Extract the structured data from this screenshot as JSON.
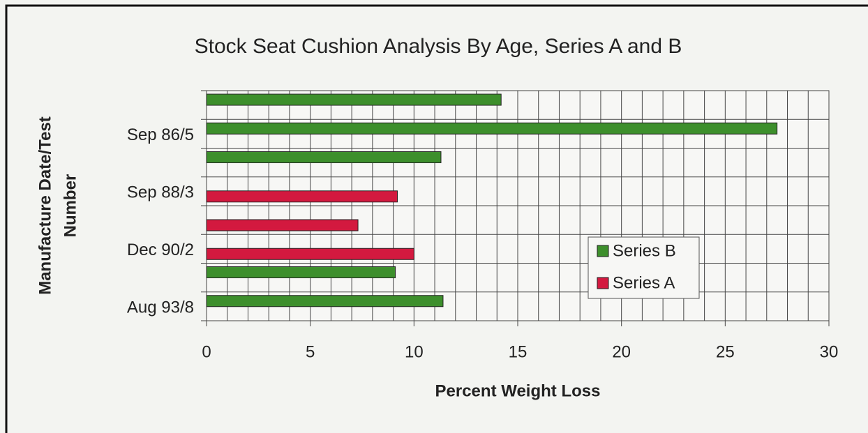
{
  "chart_data": {
    "type": "barh",
    "title": "Stock Seat Cushion Analysis By Age, Series A and B",
    "xlabel": "Percent Weight Loss",
    "ylabel": [
      "Manufacture Date/Test",
      "Number"
    ],
    "categories": [
      null,
      "Sep 86/5",
      null,
      "Sep 88/3",
      null,
      "Dec 90/2",
      null,
      "Aug 93/8"
    ],
    "series": [
      {
        "name": "Series B",
        "color": "#3d8f2c",
        "values": [
          14.2,
          27.5,
          11.3,
          null,
          null,
          null,
          9.1,
          11.4
        ]
      },
      {
        "name": "Series A",
        "color": "#d3193f",
        "values": [
          null,
          null,
          null,
          9.2,
          7.3,
          10.0,
          null,
          null
        ]
      }
    ],
    "xlim": [
      0,
      30
    ],
    "xticks": [
      0,
      5,
      10,
      15,
      20,
      25,
      30
    ],
    "x_minor_ticks": [
      0,
      1,
      2,
      3,
      4,
      5,
      6,
      7,
      8,
      9,
      10,
      11,
      12,
      13,
      14,
      15,
      16,
      17,
      18,
      19,
      20,
      21,
      22,
      23,
      24,
      25,
      26,
      27,
      28,
      29,
      30
    ],
    "grid": true,
    "legend": "lower right"
  }
}
